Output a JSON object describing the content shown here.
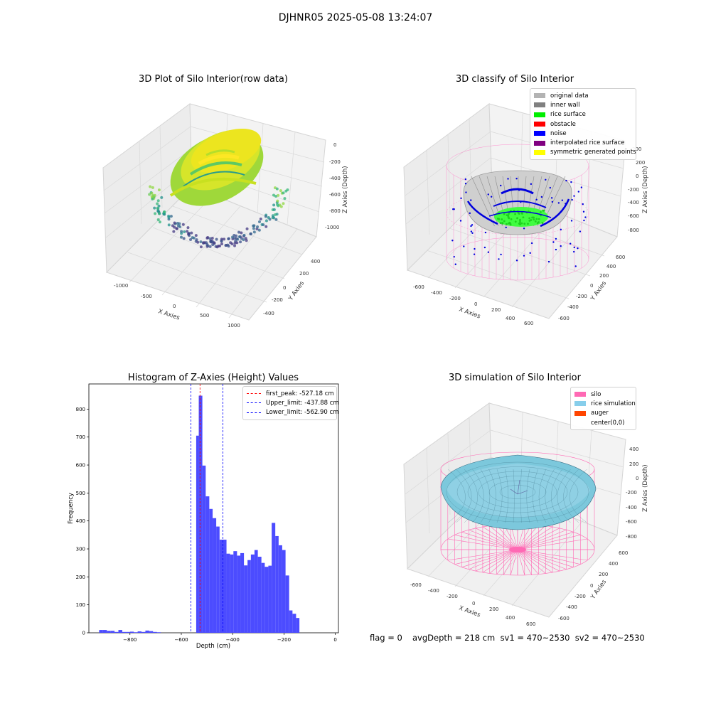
{
  "figure": {
    "suptitle": "DJHNR05 2025-05-08 13:24:07"
  },
  "chart_data": [
    {
      "type": "scatter",
      "title": "3D Plot of Silo Interior(row data)",
      "xlabel": "X Axies",
      "ylabel": "Y Axies",
      "zlabel": "Z Axies (Depth)",
      "x_ticks": [
        "-1000",
        "-500",
        "0",
        "500",
        "1000"
      ],
      "y_ticks": [
        "-400",
        "-200",
        "0",
        "200",
        "400"
      ],
      "z_ticks": [
        "0",
        "-200",
        "-400",
        "-600",
        "-800",
        "-1000"
      ],
      "colormap": "viridis"
    },
    {
      "type": "scatter",
      "title": "3D classify of Silo Interior",
      "xlabel": "X Axies",
      "ylabel": "Y Axies",
      "zlabel": "Z Axies (Depth)",
      "x_ticks": [
        "-600",
        "-400",
        "-200",
        "0",
        "200",
        "400",
        "600"
      ],
      "y_ticks": [
        "-600",
        "-400",
        "-200",
        "0",
        "200",
        "400",
        "600"
      ],
      "z_ticks": [
        "200",
        "0",
        "-200",
        "-400",
        "-600",
        "-800"
      ],
      "legend": [
        {
          "label": "original data",
          "color": "#b3b3b3"
        },
        {
          "label": "inner wall",
          "color": "#808080"
        },
        {
          "label": "rice surface",
          "color": "#00ee00"
        },
        {
          "label": "obstacle",
          "color": "#ff0000"
        },
        {
          "label": "noise",
          "color": "#0000ff"
        },
        {
          "label": "interpolated rice surface",
          "color": "#800080"
        },
        {
          "label": "symmetric generated points",
          "color": "#ffff00"
        }
      ]
    },
    {
      "type": "bar",
      "title": "Histogram of Z-Axies (Height) Values",
      "xlabel": "Depth (cm)",
      "ylabel": "Frequency",
      "xlim": [
        -960,
        12
      ],
      "ylim": [
        0,
        890
      ],
      "x_ticks": [
        -800,
        -600,
        -400,
        -200,
        0
      ],
      "y_ticks": [
        0,
        100,
        200,
        300,
        400,
        500,
        600,
        700,
        800
      ],
      "bar_color": "#4c4cff",
      "bins": [
        [
          -920,
          -905,
          10
        ],
        [
          -905,
          -890,
          10
        ],
        [
          -890,
          -875,
          7
        ],
        [
          -875,
          -860,
          7
        ],
        [
          -860,
          -845,
          3
        ],
        [
          -845,
          -830,
          10
        ],
        [
          -830,
          -815,
          3
        ],
        [
          -815,
          -800,
          3
        ],
        [
          -800,
          -785,
          4
        ],
        [
          -785,
          -770,
          2
        ],
        [
          -770,
          -755,
          5
        ],
        [
          -755,
          -740,
          3
        ],
        [
          -740,
          -725,
          8
        ],
        [
          -725,
          -710,
          6
        ],
        [
          -710,
          -695,
          3
        ],
        [
          -695,
          -680,
          2
        ],
        [
          -542,
          -532,
          705
        ],
        [
          -532,
          -518,
          848
        ],
        [
          -518,
          -505,
          598
        ],
        [
          -505,
          -491,
          488
        ],
        [
          -491,
          -478,
          443
        ],
        [
          -478,
          -464,
          410
        ],
        [
          -464,
          -451,
          380
        ],
        [
          -451,
          -424,
          333
        ],
        [
          -424,
          -410,
          283
        ],
        [
          -410,
          -397,
          280
        ],
        [
          -397,
          -383,
          292
        ],
        [
          -383,
          -370,
          276
        ],
        [
          -370,
          -356,
          285
        ],
        [
          -356,
          -342,
          241
        ],
        [
          -342,
          -329,
          260
        ],
        [
          -329,
          -315,
          280
        ],
        [
          -315,
          -302,
          296
        ],
        [
          -302,
          -288,
          272
        ],
        [
          -288,
          -275,
          250
        ],
        [
          -275,
          -261,
          236
        ],
        [
          -261,
          -248,
          240
        ],
        [
          -248,
          -234,
          393
        ],
        [
          -234,
          -221,
          346
        ],
        [
          -221,
          -207,
          313
        ],
        [
          -207,
          -194,
          296
        ],
        [
          -194,
          -180,
          205
        ],
        [
          -180,
          -167,
          80
        ],
        [
          -167,
          -153,
          68
        ],
        [
          -153,
          -140,
          53
        ]
      ],
      "vlines": [
        {
          "label": "first_peak: -527.18 cm",
          "value": -527.18,
          "color": "#ff0000"
        },
        {
          "label": "Upper_limit: -437.88 cm",
          "value": -437.88,
          "color": "#0000ff"
        },
        {
          "label": "Lower_limit: -562.90 cm",
          "value": -562.9,
          "color": "#0000ff"
        }
      ]
    },
    {
      "type": "surface",
      "title": "3D simulation of Silo Interior",
      "xlabel": "X Axies",
      "ylabel": "Y Axies",
      "zlabel": "Z Axies (Depth)",
      "x_ticks": [
        "-600",
        "-400",
        "-200",
        "0",
        "200",
        "400",
        "600"
      ],
      "y_ticks": [
        "-600",
        "-400",
        "-200",
        "0",
        "200",
        "400",
        "600"
      ],
      "z_ticks": [
        "400",
        "200",
        "0",
        "-200",
        "-400",
        "-600",
        "-800"
      ],
      "legend": [
        {
          "label": "silo",
          "color": "#ff69b4"
        },
        {
          "label": "rice simulation",
          "color": "#87ceeb"
        },
        {
          "label": "auger",
          "color": "#ff4500"
        },
        {
          "label": "center(0,0)",
          "color": ""
        }
      ]
    }
  ],
  "footer": {
    "flag": "flag = 0",
    "stats": "avgDepth = 218 cm  sv1 = 470~2530  sv2 = 470~2530"
  }
}
